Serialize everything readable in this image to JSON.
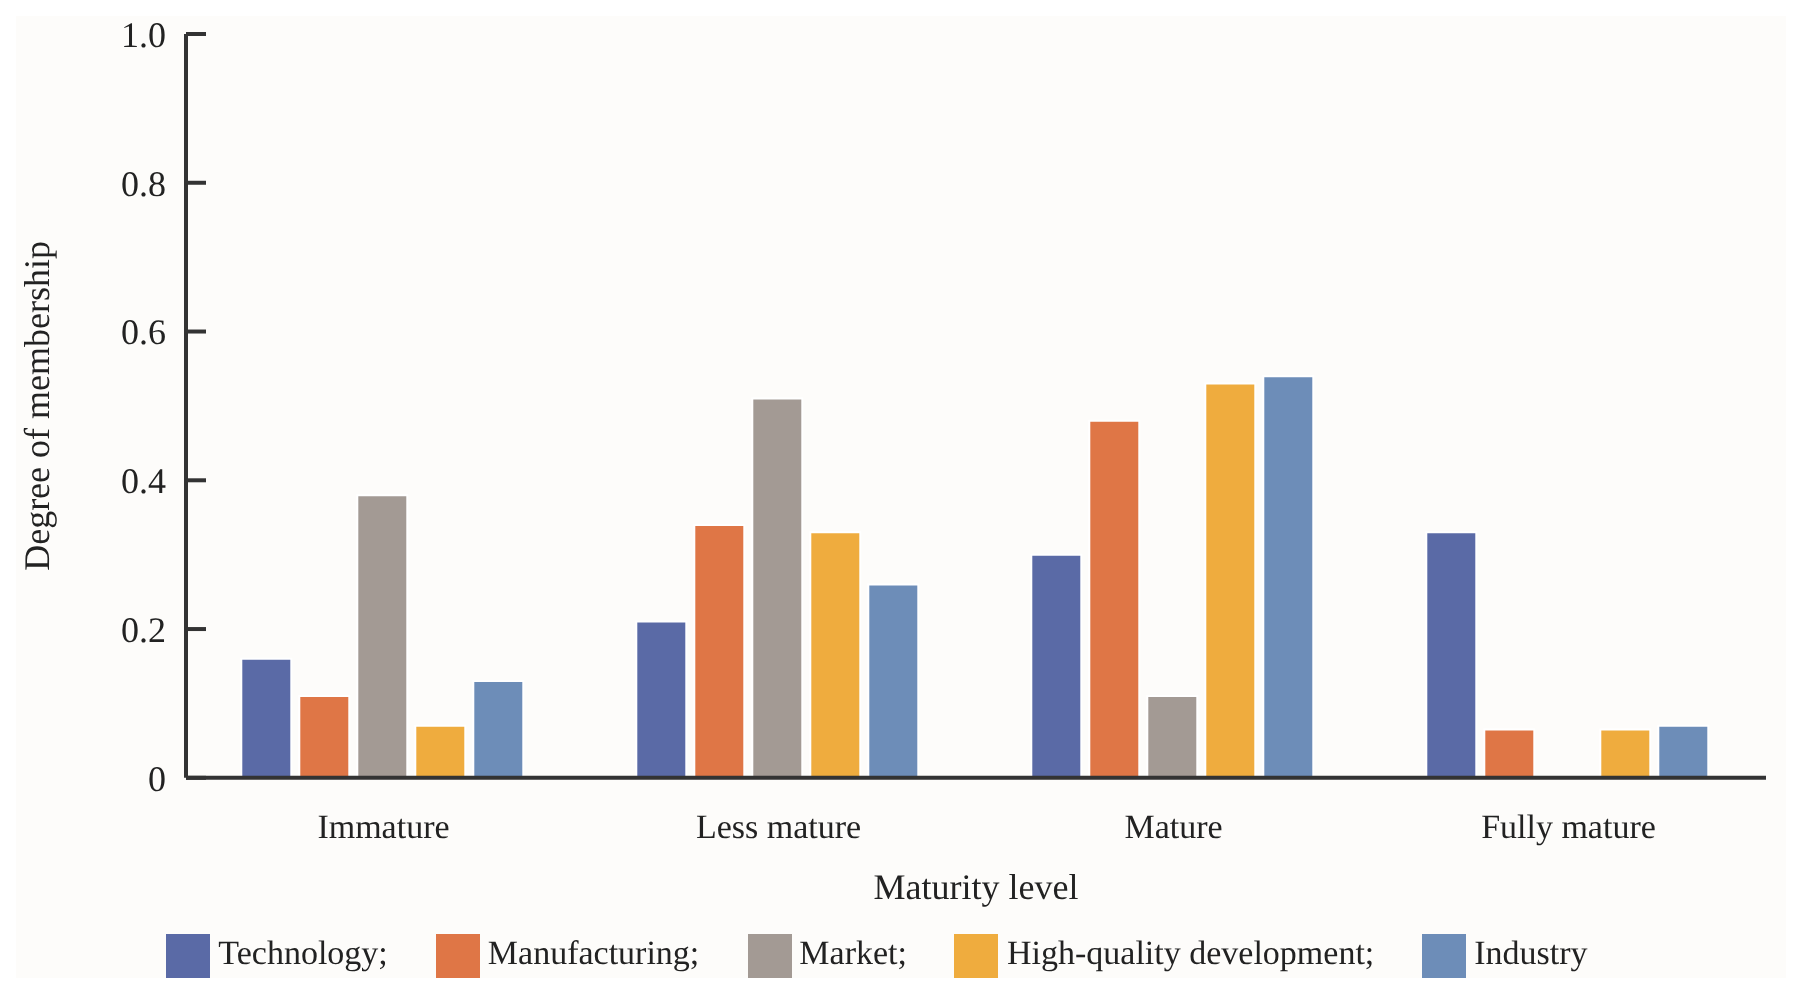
{
  "chart_data": {
    "type": "bar",
    "xlabel": "Maturity level",
    "ylabel": "Degree of membership",
    "categories": [
      "Immature",
      "Less mature",
      "Mature",
      "Fully mature"
    ],
    "series": [
      {
        "name": "Technology;",
        "color": "#5a6aa6",
        "values": [
          0.16,
          0.21,
          0.3,
          0.33
        ]
      },
      {
        "name": "Manufacturing;",
        "color": "#df7646",
        "values": [
          0.11,
          0.34,
          0.48,
          0.065
        ]
      },
      {
        "name": "Market;",
        "color": "#a39a94",
        "values": [
          0.38,
          0.51,
          0.11,
          0
        ]
      },
      {
        "name": "High-quality development;",
        "color": "#efac3e",
        "values": [
          0.07,
          0.33,
          0.53,
          0.065
        ]
      },
      {
        "name": "Industry",
        "color": "#6d8db8",
        "values": [
          0.13,
          0.26,
          0.54,
          0.07
        ]
      }
    ],
    "ylim": [
      0,
      1
    ],
    "yticks": [
      0,
      0.2,
      0.4,
      0.6,
      0.8,
      {
        "value": 1,
        "label": "1.0"
      }
    ],
    "grid": false,
    "legend": "bottom"
  }
}
